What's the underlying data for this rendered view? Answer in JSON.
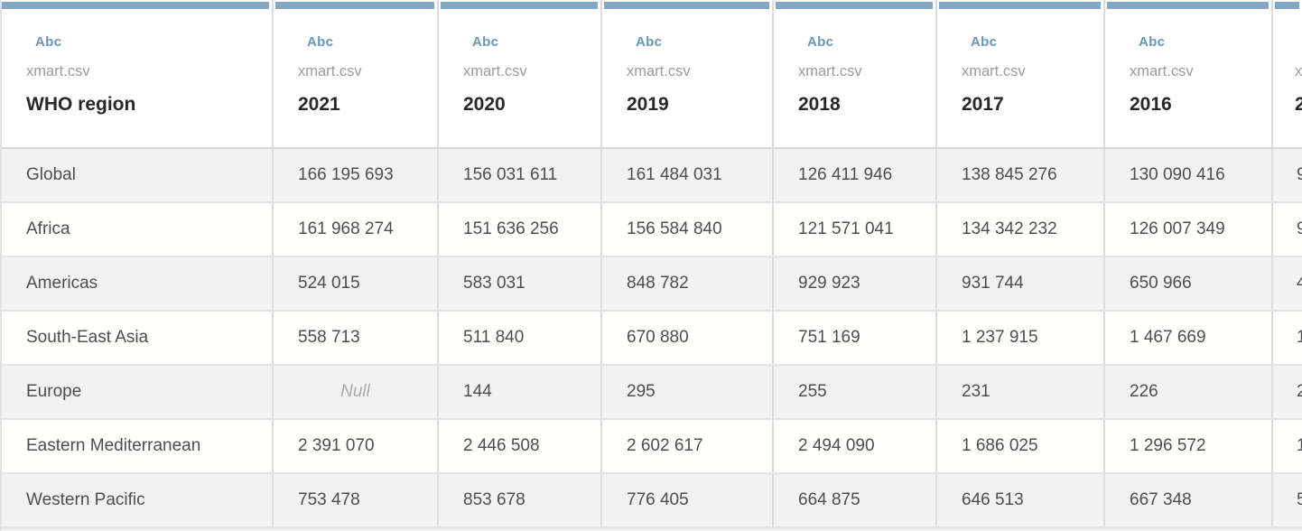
{
  "colors": {
    "header_bar": "#84a7c4",
    "type_label_blue": "#6996b9",
    "column_name_text": "#27282a",
    "source_text": "#9c9c9c",
    "cell_text": "#4e4e4e",
    "null_text": "#ababab",
    "row_alt_bg": "#f2f2f2",
    "row_bg": "#ffffff",
    "separator": "#dcdcdc"
  },
  "table": {
    "columns": [
      {
        "type_label": "Abc",
        "source": "xmart.csv",
        "name": "WHO region"
      },
      {
        "type_label": "Abc",
        "source": "xmart.csv",
        "name": "2021"
      },
      {
        "type_label": "Abc",
        "source": "xmart.csv",
        "name": "2020"
      },
      {
        "type_label": "Abc",
        "source": "xmart.csv",
        "name": "2019"
      },
      {
        "type_label": "Abc",
        "source": "xmart.csv",
        "name": "2018"
      },
      {
        "type_label": "Abc",
        "source": "xmart.csv",
        "name": "2017"
      },
      {
        "type_label": "Abc",
        "source": "xmart.csv",
        "name": "2016"
      }
    ],
    "partial_column": {
      "source_fragment": "x",
      "name_fragment": "2"
    },
    "rows": [
      {
        "label": "Global",
        "values": [
          "166 195 693",
          "156 031 611",
          "161 484 031",
          "126 411 946",
          "138 845 276",
          "130 090 416"
        ],
        "next_value_fragment": "9"
      },
      {
        "label": "Africa",
        "values": [
          "161 968 274",
          "151 636 256",
          "156 584 840",
          "121 571 041",
          "134 342 232",
          "126 007 349"
        ],
        "next_value_fragment": "9"
      },
      {
        "label": "Americas",
        "values": [
          "524 015",
          "583 031",
          "848 782",
          "929 923",
          "931 744",
          "650 966"
        ],
        "next_value_fragment": "4"
      },
      {
        "label": "South-East Asia",
        "values": [
          "558 713",
          "511 840",
          "670 880",
          "751 169",
          "1 237 915",
          "1 467 669"
        ],
        "next_value_fragment": "1"
      },
      {
        "label": "Europe",
        "values": [
          "Null",
          "144",
          "295",
          "255",
          "231",
          "226"
        ],
        "next_value_fragment": "2"
      },
      {
        "label": "Eastern Mediterranean",
        "values": [
          "2 391 070",
          "2 446 508",
          "2 602 617",
          "2 494 090",
          "1 686 025",
          "1 296 572"
        ],
        "next_value_fragment": "1"
      },
      {
        "label": "Western Pacific",
        "values": [
          "753 478",
          "853 678",
          "776 405",
          "664 875",
          "646 513",
          "667 348"
        ],
        "next_value_fragment": "5"
      }
    ]
  }
}
